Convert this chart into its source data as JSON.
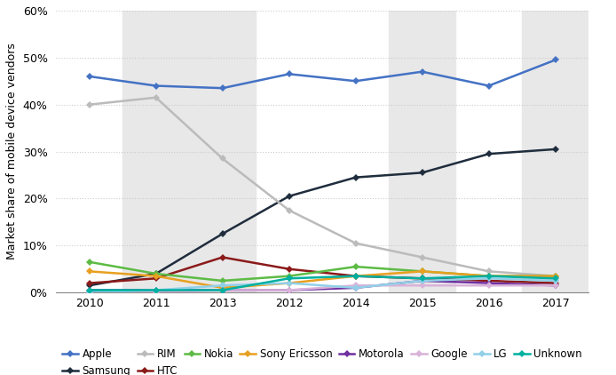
{
  "x_labels": [
    "2010",
    "2011",
    "2013",
    "2012",
    "2014",
    "2015",
    "2016",
    "2017"
  ],
  "series": {
    "Apple": [
      46.0,
      44.0,
      43.5,
      46.5,
      45.0,
      47.0,
      44.0,
      49.5
    ],
    "Samsung": [
      1.5,
      4.0,
      12.5,
      20.5,
      24.5,
      25.5,
      29.5,
      30.5
    ],
    "RIM": [
      40.0,
      41.5,
      28.5,
      17.5,
      10.5,
      7.5,
      4.5,
      3.5
    ],
    "HTC": [
      2.0,
      3.0,
      7.5,
      5.0,
      3.5,
      3.0,
      2.5,
      2.0
    ],
    "Nokia": [
      6.5,
      4.0,
      2.5,
      3.5,
      5.5,
      4.5,
      3.5,
      3.5
    ],
    "Sony Ericsson": [
      4.5,
      3.5,
      1.0,
      2.0,
      3.5,
      4.5,
      3.5,
      3.5
    ],
    "Motorola": [
      0.5,
      0.5,
      0.5,
      0.5,
      1.0,
      2.5,
      2.0,
      1.5
    ],
    "Google": [
      0.0,
      0.0,
      0.5,
      0.5,
      1.5,
      1.5,
      1.5,
      1.5
    ],
    "LG": [
      0.0,
      0.5,
      1.5,
      2.0,
      1.0,
      2.5,
      3.0,
      2.5
    ],
    "Unknown": [
      0.5,
      0.5,
      0.5,
      3.0,
      3.5,
      3.0,
      3.5,
      3.0
    ]
  },
  "colors": {
    "Apple": "#4472C4",
    "Samsung": "#1F2D3D",
    "RIM": "#BBBBBB",
    "HTC": "#8B1A1A",
    "Nokia": "#5DBB45",
    "Sony Ericsson": "#E8A020",
    "Motorola": "#7030A0",
    "Google": "#D9B3D9",
    "LG": "#92D0E8",
    "Unknown": "#00B0A0"
  },
  "stripe_cols": [
    1,
    2
  ],
  "ylim": [
    0,
    60
  ],
  "yticks": [
    0,
    10,
    20,
    30,
    40,
    50,
    60
  ],
  "ylabel": "Market share of mobile device vendors",
  "bg_color": "#FFFFFF",
  "stripe_color": "#E8E8E8",
  "grid_color": "#CCCCCC",
  "axis_fontsize": 9,
  "legend_fontsize": 8.5
}
